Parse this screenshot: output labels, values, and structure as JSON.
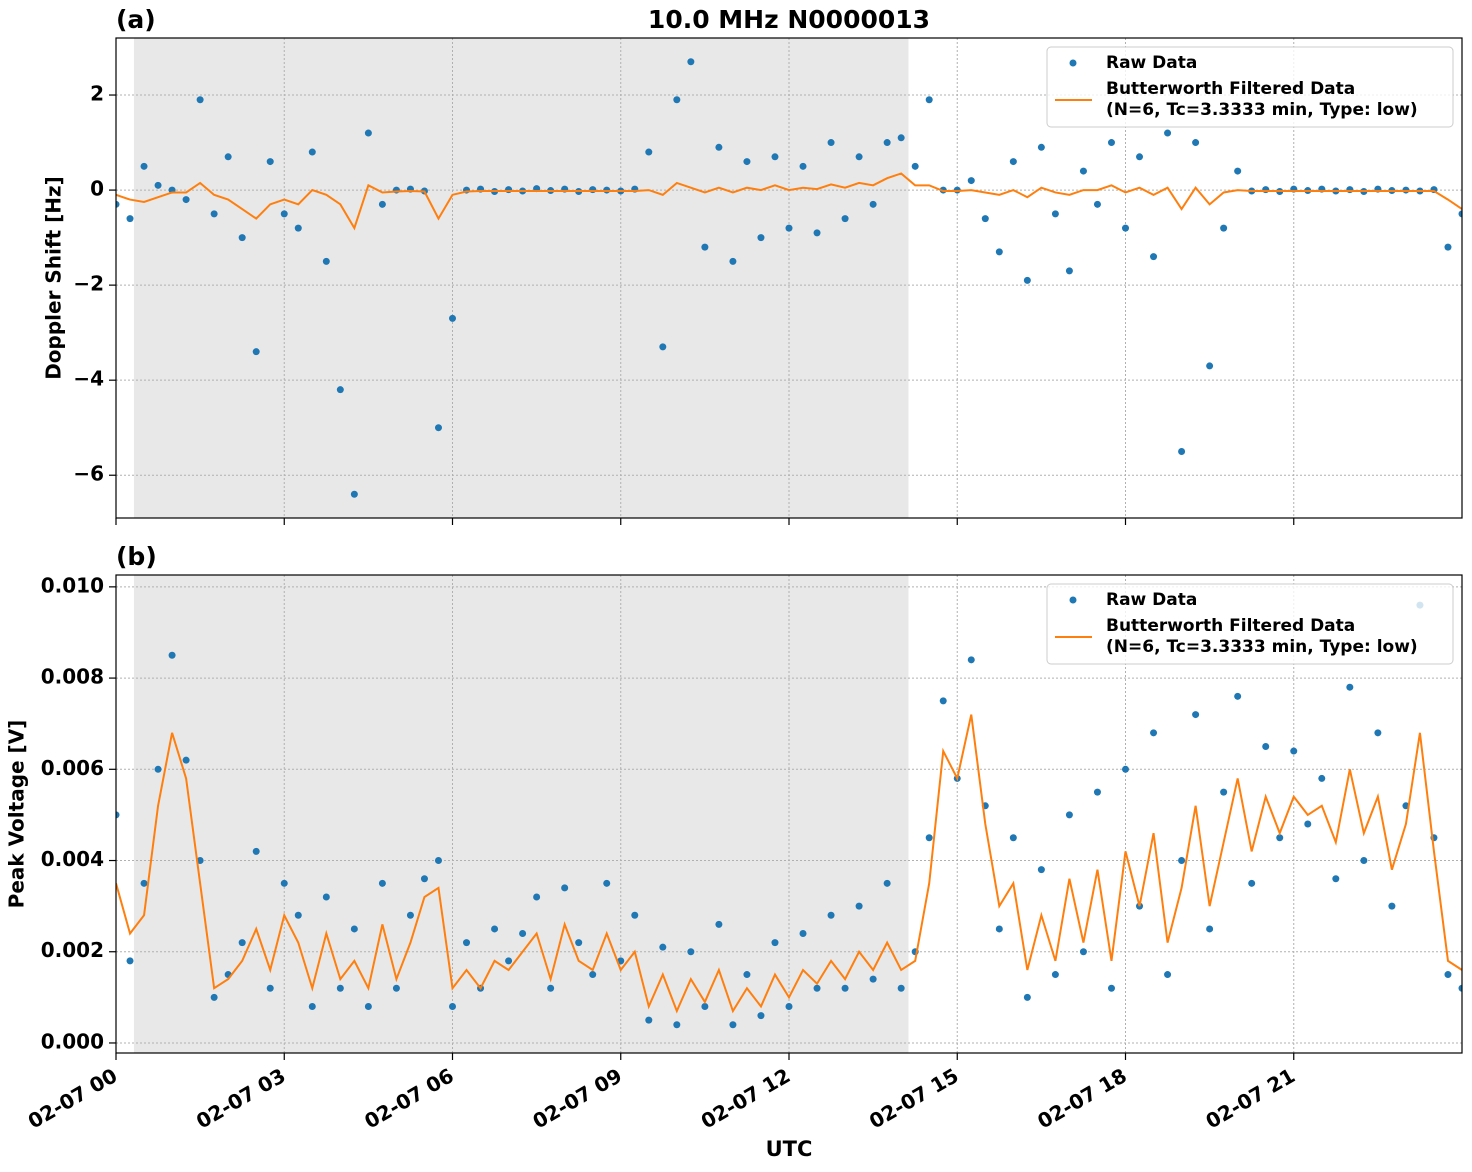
{
  "chart_data": [
    {
      "type": "scatter",
      "title": "10.0 MHz N0000013",
      "panel_label": "(a)",
      "ylabel": "Doppler Shift [Hz]",
      "xlim": [
        0,
        24
      ],
      "xticks": [
        0,
        3,
        6,
        9,
        12,
        15,
        18,
        21
      ],
      "ylim": [
        -6.9,
        3.2
      ],
      "yticks": [
        {
          "value": -6,
          "label": "−6"
        },
        {
          "value": -4,
          "label": "−4"
        },
        {
          "value": -2,
          "label": "−2"
        },
        0,
        2
      ],
      "grid": true,
      "shade": [
        0.32,
        14.13
      ],
      "legend": "upper right",
      "x": [
        0,
        0.25,
        0.5,
        0.75,
        1,
        1.25,
        1.5,
        1.75,
        2,
        2.25,
        2.5,
        2.75,
        3,
        3.25,
        3.5,
        3.75,
        4,
        4.25,
        4.5,
        4.75,
        5,
        5.25,
        5.5,
        5.75,
        6,
        6.25,
        6.5,
        6.75,
        7,
        7.25,
        7.5,
        7.75,
        8,
        8.25,
        8.5,
        8.75,
        9,
        9.25,
        9.5,
        9.75,
        10,
        10.25,
        10.5,
        10.75,
        11,
        11.25,
        11.5,
        11.75,
        12,
        12.25,
        12.5,
        12.75,
        13,
        13.25,
        13.5,
        13.75,
        14,
        14.25,
        14.5,
        14.75,
        15,
        15.25,
        15.5,
        15.75,
        16,
        16.25,
        16.5,
        16.75,
        17,
        17.25,
        17.5,
        17.75,
        18,
        18.25,
        18.5,
        18.75,
        19,
        19.25,
        19.5,
        19.75,
        20,
        20.25,
        20.5,
        20.75,
        21,
        21.25,
        21.5,
        21.75,
        22,
        22.25,
        22.5,
        22.75,
        23,
        23.25,
        23.5,
        23.75,
        24
      ],
      "series": [
        {
          "name": "Raw Data",
          "color": "#1f77b4",
          "style": "points",
          "values": [
            -0.3,
            -0.6,
            0.5,
            0.1,
            0,
            -0.2,
            1.9,
            -0.5,
            0.7,
            -1.0,
            -3.4,
            0.6,
            -0.5,
            -0.8,
            0.8,
            -1.5,
            -4.2,
            -6.4,
            1.2,
            -0.3,
            0,
            0.02,
            -0.02,
            -5.0,
            -2.7,
            0,
            0.02,
            -0.03,
            0.01,
            -0.02,
            0.03,
            -0.01,
            0.02,
            -0.03,
            0.01,
            0,
            -0.02,
            0.02,
            0.8,
            -3.3,
            1.9,
            2.7,
            -1.2,
            0.9,
            -1.5,
            0.6,
            -1.0,
            0.7,
            -0.8,
            0.5,
            -0.9,
            1.0,
            -0.6,
            0.7,
            -0.3,
            1.0,
            1.1,
            0.5,
            1.9,
            0,
            0,
            0.2,
            -0.6,
            -1.3,
            0.6,
            -1.9,
            0.9,
            -0.5,
            -1.7,
            0.4,
            -0.3,
            1.0,
            -0.8,
            0.7,
            -1.4,
            1.2,
            -5.5,
            1.0,
            -3.7,
            -0.8,
            0.4,
            -0.02,
            0.01,
            -0.03,
            0.02,
            -0.01,
            0.02,
            -0.02,
            0.01,
            -0.03,
            0.02,
            -0.01,
            0,
            -0.02,
            0.01,
            -1.2,
            -0.5
          ]
        },
        {
          "name": "Butterworth Filtered Data\n(N=6, Tc=3.3333 min, Type: low)",
          "color": "#ff7f0e",
          "style": "line",
          "values": [
            -0.1,
            -0.2,
            -0.25,
            -0.15,
            -0.05,
            -0.05,
            0.15,
            -0.1,
            -0.2,
            -0.4,
            -0.6,
            -0.3,
            -0.2,
            -0.3,
            0,
            -0.1,
            -0.3,
            -0.8,
            0.1,
            -0.05,
            -0.03,
            -0.02,
            -0.03,
            -0.6,
            -0.1,
            -0.03,
            -0.02,
            -0.02,
            -0.02,
            -0.02,
            -0.02,
            -0.02,
            -0.02,
            -0.02,
            -0.02,
            -0.02,
            -0.02,
            -0.02,
            0,
            -0.1,
            0.15,
            0.05,
            -0.05,
            0.05,
            -0.05,
            0.05,
            0,
            0.1,
            0,
            0.05,
            0.02,
            0.12,
            0.05,
            0.15,
            0.1,
            0.25,
            0.35,
            0.1,
            0.1,
            -0.02,
            -0.02,
            0,
            -0.05,
            -0.1,
            0,
            -0.15,
            0.05,
            -0.05,
            -0.1,
            0,
            0,
            0.1,
            -0.05,
            0.05,
            -0.1,
            0.05,
            -0.4,
            0.05,
            -0.3,
            -0.05,
            0,
            -0.02,
            -0.02,
            -0.02,
            -0.02,
            -0.02,
            -0.02,
            -0.02,
            -0.02,
            -0.02,
            -0.02,
            -0.02,
            -0.02,
            -0.02,
            -0.02,
            -0.2,
            -0.4
          ]
        }
      ]
    },
    {
      "type": "scatter",
      "panel_label": "(b)",
      "ylabel": "Peak Voltage [V]",
      "xlabel": "UTC",
      "xlim": [
        0,
        24
      ],
      "xticks": [
        {
          "value": 0,
          "label": "02-07 00"
        },
        {
          "value": 3,
          "label": "02-07 03"
        },
        {
          "value": 6,
          "label": "02-07 06"
        },
        {
          "value": 9,
          "label": "02-07 09"
        },
        {
          "value": 12,
          "label": "02-07 12"
        },
        {
          "value": 15,
          "label": "02-07 15"
        },
        {
          "value": 18,
          "label": "02-07 18"
        },
        {
          "value": 21,
          "label": "02-07 21"
        }
      ],
      "ylim": [
        -0.00022,
        0.01026
      ],
      "yticks": [
        {
          "value": 0,
          "label": "0.000"
        },
        {
          "value": 0.002,
          "label": "0.002"
        },
        {
          "value": 0.004,
          "label": "0.004"
        },
        {
          "value": 0.006,
          "label": "0.006"
        },
        {
          "value": 0.008,
          "label": "0.008"
        },
        {
          "value": 0.01,
          "label": "0.010"
        }
      ],
      "grid": true,
      "shade": [
        0.32,
        14.13
      ],
      "legend": "upper right",
      "x": [
        0,
        0.25,
        0.5,
        0.75,
        1,
        1.25,
        1.5,
        1.75,
        2,
        2.25,
        2.5,
        2.75,
        3,
        3.25,
        3.5,
        3.75,
        4,
        4.25,
        4.5,
        4.75,
        5,
        5.25,
        5.5,
        5.75,
        6,
        6.25,
        6.5,
        6.75,
        7,
        7.25,
        7.5,
        7.75,
        8,
        8.25,
        8.5,
        8.75,
        9,
        9.25,
        9.5,
        9.75,
        10,
        10.25,
        10.5,
        10.75,
        11,
        11.25,
        11.5,
        11.75,
        12,
        12.25,
        12.5,
        12.75,
        13,
        13.25,
        13.5,
        13.75,
        14,
        14.25,
        14.5,
        14.75,
        15,
        15.25,
        15.5,
        15.75,
        16,
        16.25,
        16.5,
        16.75,
        17,
        17.25,
        17.5,
        17.75,
        18,
        18.25,
        18.5,
        18.75,
        19,
        19.25,
        19.5,
        19.75,
        20,
        20.25,
        20.5,
        20.75,
        21,
        21.25,
        21.5,
        21.75,
        22,
        22.25,
        22.5,
        22.75,
        23,
        23.25,
        23.5,
        23.75,
        24
      ],
      "series": [
        {
          "name": "Raw Data",
          "color": "#1f77b4",
          "style": "points",
          "values": [
            0.005,
            0.0018,
            0.0035,
            0.006,
            0.0085,
            0.0062,
            0.004,
            0.001,
            0.0015,
            0.0022,
            0.0042,
            0.0012,
            0.0035,
            0.0028,
            0.0008,
            0.0032,
            0.0012,
            0.0025,
            0.0008,
            0.0035,
            0.0012,
            0.0028,
            0.0036,
            0.004,
            0.0008,
            0.0022,
            0.0012,
            0.0025,
            0.0018,
            0.0024,
            0.0032,
            0.0012,
            0.0034,
            0.0022,
            0.0015,
            0.0035,
            0.0018,
            0.0028,
            0.0005,
            0.0021,
            0.0004,
            0.002,
            0.0008,
            0.0026,
            0.0004,
            0.0015,
            0.0006,
            0.0022,
            0.0008,
            0.0024,
            0.0012,
            0.0028,
            0.0012,
            0.003,
            0.0014,
            0.0035,
            0.0012,
            0.002,
            0.0045,
            0.0075,
            0.0058,
            0.0084,
            0.0052,
            0.0025,
            0.0045,
            0.001,
            0.0038,
            0.0015,
            0.005,
            0.002,
            0.0055,
            0.0012,
            0.006,
            0.003,
            0.0068,
            0.0015,
            0.004,
            0.0072,
            0.0025,
            0.0055,
            0.0076,
            0.0035,
            0.0065,
            0.0045,
            0.0064,
            0.0048,
            0.0058,
            0.0036,
            0.0078,
            0.004,
            0.0068,
            0.003,
            0.0052,
            0.0096,
            0.0045,
            0.0015,
            0.0012
          ]
        },
        {
          "name": "Butterworth Filtered Data\n(N=6, Tc=3.3333 min, Type: low)",
          "color": "#ff7f0e",
          "style": "line",
          "values": [
            0.0035,
            0.0024,
            0.0028,
            0.0052,
            0.0068,
            0.0058,
            0.0035,
            0.0012,
            0.0014,
            0.0018,
            0.0025,
            0.0016,
            0.0028,
            0.0022,
            0.0012,
            0.0024,
            0.0014,
            0.0018,
            0.0012,
            0.0026,
            0.0014,
            0.0022,
            0.0032,
            0.0034,
            0.0012,
            0.0016,
            0.0012,
            0.0018,
            0.0016,
            0.002,
            0.0024,
            0.0014,
            0.0026,
            0.0018,
            0.0016,
            0.0024,
            0.0016,
            0.002,
            0.0008,
            0.0015,
            0.0007,
            0.0014,
            0.0009,
            0.0016,
            0.0007,
            0.0012,
            0.0008,
            0.0015,
            0.001,
            0.0016,
            0.0013,
            0.0018,
            0.0014,
            0.002,
            0.0016,
            0.0022,
            0.0016,
            0.0018,
            0.0035,
            0.0064,
            0.0058,
            0.0072,
            0.0048,
            0.003,
            0.0035,
            0.0016,
            0.0028,
            0.0018,
            0.0036,
            0.0022,
            0.0038,
            0.0018,
            0.0042,
            0.003,
            0.0046,
            0.0022,
            0.0034,
            0.0052,
            0.003,
            0.0044,
            0.0058,
            0.0042,
            0.0054,
            0.0046,
            0.0054,
            0.005,
            0.0052,
            0.0044,
            0.006,
            0.0046,
            0.0054,
            0.0038,
            0.0048,
            0.0068,
            0.0042,
            0.0018,
            0.0016
          ]
        }
      ]
    }
  ]
}
